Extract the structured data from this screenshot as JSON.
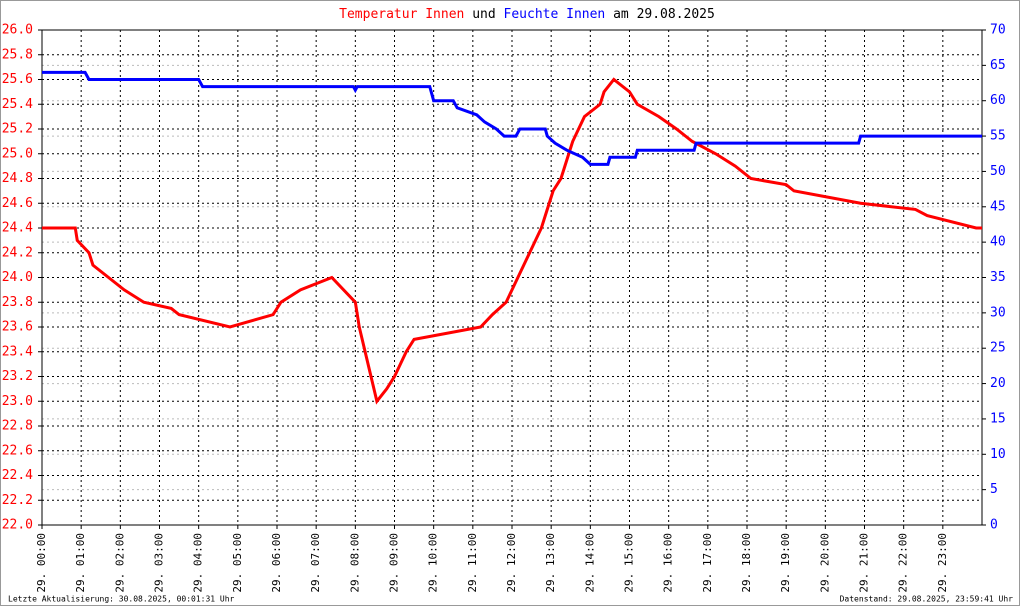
{
  "chart_data": {
    "type": "line",
    "title_connector": "und",
    "title_suffix": "am 29.08.2025",
    "footer_left": "Letzte Aktualisierung: 30.08.2025, 00:01:31 Uhr",
    "footer_right": "Datenstand: 29.08.2025, 23:59:41 Uhr",
    "grid": true,
    "xlim": [
      0,
      24
    ],
    "xticks": [
      {
        "value": 0,
        "label": "29. 00:00"
      },
      {
        "value": 1,
        "label": "29. 01:00"
      },
      {
        "value": 2,
        "label": "29. 02:00"
      },
      {
        "value": 3,
        "label": "29. 03:00"
      },
      {
        "value": 4,
        "label": "29. 04:00"
      },
      {
        "value": 5,
        "label": "29. 05:00"
      },
      {
        "value": 6,
        "label": "29. 06:00"
      },
      {
        "value": 7,
        "label": "29. 07:00"
      },
      {
        "value": 8,
        "label": "29. 08:00"
      },
      {
        "value": 9,
        "label": "29. 09:00"
      },
      {
        "value": 10,
        "label": "29. 10:00"
      },
      {
        "value": 11,
        "label": "29. 11:00"
      },
      {
        "value": 12,
        "label": "29. 12:00"
      },
      {
        "value": 13,
        "label": "29. 13:00"
      },
      {
        "value": 14,
        "label": "29. 14:00"
      },
      {
        "value": 15,
        "label": "29. 15:00"
      },
      {
        "value": 16,
        "label": "29. 16:00"
      },
      {
        "value": 17,
        "label": "29. 17:00"
      },
      {
        "value": 18,
        "label": "29. 18:00"
      },
      {
        "value": 19,
        "label": "29. 19:00"
      },
      {
        "value": 20,
        "label": "29. 20:00"
      },
      {
        "value": 21,
        "label": "29. 21:00"
      },
      {
        "value": 22,
        "label": "29. 22:00"
      },
      {
        "value": 23,
        "label": "29. 23:00"
      }
    ],
    "ylim": [
      22,
      26
    ],
    "yticks": [
      {
        "value": 22,
        "label": "22.0"
      },
      22.2,
      22.4,
      22.6,
      22.8,
      {
        "value": 23,
        "label": "23.0"
      },
      23.2,
      23.4,
      23.6,
      23.8,
      {
        "value": 24,
        "label": "24.0"
      },
      24.2,
      24.4,
      24.6,
      24.8,
      {
        "value": 25,
        "label": "25.0"
      },
      25.2,
      25.4,
      25.6,
      25.8,
      {
        "value": 26,
        "label": "26.0"
      }
    ],
    "y2lim": [
      0,
      70
    ],
    "y2ticks": [
      0,
      5,
      10,
      15,
      20,
      25,
      30,
      35,
      40,
      45,
      50,
      55,
      60,
      65,
      70
    ],
    "series": [
      {
        "name": "Temperatur Innen",
        "color": "#ff0000",
        "x": [
          0,
          0.85,
          0.9,
          1.2,
          1.3,
          1.7,
          2.1,
          2.6,
          3.3,
          3.5,
          4.8,
          5.9,
          6.1,
          6.6,
          7.4,
          8.0,
          8.1,
          8.25,
          8.4,
          8.55,
          8.8,
          9.0,
          9.15,
          9.3,
          9.5,
          11.2,
          11.5,
          11.85,
          12.0,
          12.15,
          12.3,
          12.45,
          12.6,
          12.75,
          12.85,
          12.95,
          13.05,
          13.25,
          13.35,
          13.45,
          13.55,
          13.7,
          13.85,
          14.25,
          14.35,
          14.6,
          15.0,
          15.2,
          15.75,
          16.2,
          16.6,
          17.2,
          17.7,
          18.1,
          19.0,
          19.2,
          20.9,
          22.3,
          22.6,
          23.85,
          24
        ],
        "values": [
          24.4,
          24.4,
          24.3,
          24.2,
          24.1,
          24.0,
          23.9,
          23.8,
          23.75,
          23.7,
          23.6,
          23.7,
          23.8,
          23.9,
          24.0,
          23.8,
          23.6,
          23.4,
          23.2,
          23.0,
          23.1,
          23.2,
          23.3,
          23.4,
          23.5,
          23.6,
          23.7,
          23.8,
          23.9,
          24.0,
          24.1,
          24.2,
          24.3,
          24.4,
          24.5,
          24.6,
          24.7,
          24.8,
          24.9,
          25.0,
          25.1,
          25.2,
          25.3,
          25.4,
          25.5,
          25.6,
          25.5,
          25.4,
          25.3,
          25.2,
          25.1,
          25.0,
          24.9,
          24.8,
          24.75,
          24.7,
          24.6,
          24.55,
          24.5,
          24.4,
          24.4
        ]
      },
      {
        "name": "Feuchte Innen",
        "color": "#0000ff",
        "axis": "y2",
        "x": [
          0,
          1.1,
          1.2,
          4.0,
          4.1,
          7.95,
          8.0,
          8.05,
          9.9,
          10.0,
          10.5,
          10.6,
          11.1,
          11.3,
          11.6,
          11.8,
          12.1,
          12.2,
          12.85,
          12.9,
          13.1,
          13.4,
          13.8,
          14.0,
          14.45,
          14.5,
          15.15,
          15.2,
          16.65,
          16.7,
          20.85,
          20.9,
          24
        ],
        "values": [
          64,
          64,
          63,
          63,
          62,
          62,
          61.5,
          62,
          62,
          60,
          60,
          59,
          58,
          57,
          56,
          55,
          55,
          56,
          56,
          55,
          54,
          53,
          52,
          51,
          51,
          52,
          52,
          53,
          53,
          54,
          54,
          55,
          55
        ]
      }
    ]
  }
}
